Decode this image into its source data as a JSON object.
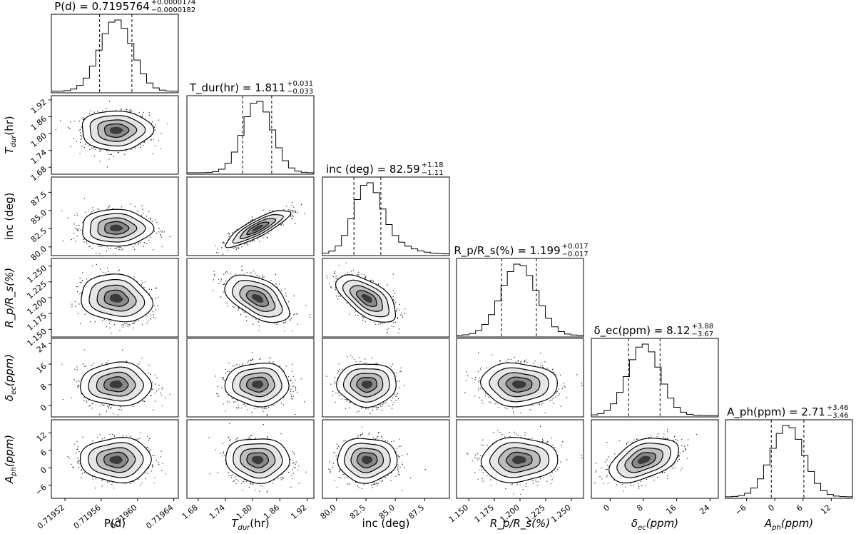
{
  "chart_data": {
    "type": "corner",
    "parameters": [
      {
        "key": "P",
        "label": "P(d)",
        "title": "P(d) = 0.7195764",
        "err_plus": "+0.0000174",
        "err_minus": "−0.0000182",
        "median": 0.7195764,
        "q_low": 0.7195582,
        "q_high": 0.7195938,
        "sigma": 1.78e-05,
        "range": [
          0.719505,
          0.719645
        ],
        "ticks": [
          0.71952,
          0.71956,
          0.7196,
          0.71964
        ],
        "tick_labels": [
          "0.71952",
          "0.71956",
          "0.71960",
          "0.71964"
        ]
      },
      {
        "key": "Tdur",
        "label": "T_dur(hr)",
        "label_main": "T",
        "label_sub": "dur",
        "label_rest": "(hr)",
        "title": "T_dur(hr) = 1.811",
        "err_plus": "+0.031",
        "err_minus": "−0.033",
        "median": 1.811,
        "q_low": 1.778,
        "q_high": 1.842,
        "sigma": 0.032,
        "range": [
          1.655,
          1.935
        ],
        "ticks": [
          1.68,
          1.74,
          1.8,
          1.86,
          1.92
        ],
        "tick_labels": [
          "1.68",
          "1.74",
          "1.80",
          "1.86",
          "1.92"
        ]
      },
      {
        "key": "inc",
        "label": "inc (deg)",
        "title": "inc (deg) = 82.59",
        "err_plus": "+1.18",
        "err_minus": "−1.11",
        "median": 82.59,
        "q_low": 81.48,
        "q_high": 83.77,
        "sigma": 1.15,
        "range": [
          78.8,
          89.6
        ],
        "ticks": [
          80.0,
          82.5,
          85.0,
          87.5
        ],
        "tick_labels": [
          "80.0",
          "82.5",
          "85.0",
          "87.5"
        ]
      },
      {
        "key": "RpRs",
        "label": "R_p/R_s(%)",
        "title": "R_p/R_s(%) = 1.199",
        "err_plus": "+0.017",
        "err_minus": "−0.017",
        "median": 1.199,
        "q_low": 1.182,
        "q_high": 1.216,
        "sigma": 0.017,
        "range": [
          1.138,
          1.262
        ],
        "ticks": [
          1.15,
          1.175,
          1.2,
          1.225,
          1.25
        ],
        "tick_labels": [
          "1.150",
          "1.175",
          "1.200",
          "1.225",
          "1.250"
        ]
      },
      {
        "key": "dec",
        "label": "δ_ec(ppm)",
        "label_main": "δ",
        "label_sub": "ec",
        "label_rest": "(ppm)",
        "title": "δ_ec(ppm) = 8.12",
        "err_plus": "+3.88",
        "err_minus": "−3.67",
        "median": 8.12,
        "q_low": 4.45,
        "q_high": 12.0,
        "sigma": 3.8,
        "range": [
          -4.5,
          26.0
        ],
        "ticks": [
          0,
          8,
          16,
          24
        ],
        "tick_labels": [
          "0",
          "8",
          "16",
          "24"
        ]
      },
      {
        "key": "Aph",
        "label": "A_ph(ppm)",
        "label_main": "A",
        "label_sub": "ph",
        "label_rest": "(ppm)",
        "title": "A_ph(ppm) = 2.71",
        "err_plus": "+3.46",
        "err_minus": "−3.46",
        "median": 2.71,
        "q_low": -0.75,
        "q_high": 6.17,
        "sigma": 3.46,
        "range": [
          -10.5,
          16.5
        ],
        "ticks": [
          -6,
          0,
          6,
          12
        ],
        "tick_labels": [
          "−6",
          "0",
          "6",
          "12"
        ]
      }
    ],
    "correlations": [
      {
        "row": 1,
        "col": 0,
        "rho": 0.0
      },
      {
        "row": 2,
        "col": 0,
        "rho": 0.0
      },
      {
        "row": 2,
        "col": 1,
        "rho": 0.85
      },
      {
        "row": 3,
        "col": 0,
        "rho": -0.15
      },
      {
        "row": 3,
        "col": 1,
        "rho": -0.5
      },
      {
        "row": 3,
        "col": 2,
        "rho": -0.6
      },
      {
        "row": 4,
        "col": 0,
        "rho": 0.0
      },
      {
        "row": 4,
        "col": 1,
        "rho": 0.0
      },
      {
        "row": 4,
        "col": 2,
        "rho": 0.0
      },
      {
        "row": 4,
        "col": 3,
        "rho": -0.05
      },
      {
        "row": 5,
        "col": 0,
        "rho": 0.0
      },
      {
        "row": 5,
        "col": 1,
        "rho": -0.05
      },
      {
        "row": 5,
        "col": 2,
        "rho": 0.0
      },
      {
        "row": 5,
        "col": 3,
        "rho": 0.05
      },
      {
        "row": 5,
        "col": 4,
        "rho": 0.45
      }
    ]
  }
}
